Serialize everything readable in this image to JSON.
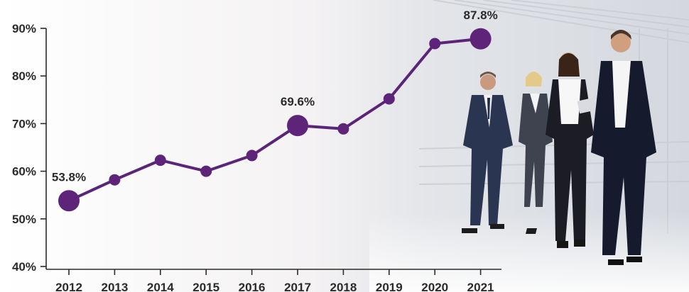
{
  "chart_data": {
    "type": "line",
    "title": "",
    "xlabel": "",
    "ylabel": "",
    "x": [
      "2012",
      "2013",
      "2014",
      "2015",
      "2016",
      "2017",
      "2018",
      "2019",
      "2020",
      "2021"
    ],
    "series": [
      {
        "values": [
          53.8,
          58.2,
          62.3,
          60.0,
          63.3,
          69.6,
          68.9,
          75.2,
          86.8,
          87.8
        ]
      }
    ],
    "ylim": [
      40,
      90
    ],
    "yticks": [
      "40%",
      "50%",
      "60%",
      "70%",
      "80%",
      "90%"
    ],
    "data_labels": [
      {
        "x": "2012",
        "text": "53.8%"
      },
      {
        "x": "2017",
        "text": "69.6%"
      },
      {
        "x": "2021",
        "text": "87.8%"
      }
    ],
    "grid": false,
    "legend": "none",
    "colors": {
      "line": "#5a2478",
      "marker": "#5e2479",
      "axis": "#2b2b2b",
      "text": "#2b2b2b"
    }
  },
  "background": {
    "illustration": "business-people-walking-photo"
  }
}
